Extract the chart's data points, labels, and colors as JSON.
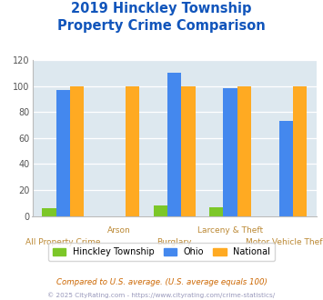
{
  "title_line1": "2019 Hinckley Township",
  "title_line2": "Property Crime Comparison",
  "categories": [
    "All Property Crime",
    "Arson",
    "Burglary",
    "Larceny & Theft",
    "Motor Vehicle Theft"
  ],
  "cat_labels": [
    "All Property Crime",
    "Arson",
    "Burglary",
    "Larceny & Theft",
    "Motor Vehicle Theft"
  ],
  "cat_labels_top": [
    "",
    "Arson",
    "",
    "Larceny & Theft",
    ""
  ],
  "cat_labels_bot": [
    "All Property Crime",
    "",
    "Burglary",
    "",
    "Motor Vehicle Theft"
  ],
  "series": {
    "Hinckley Township": [
      6,
      0,
      8,
      7,
      0
    ],
    "Ohio": [
      97,
      0,
      110,
      98,
      73
    ],
    "National": [
      100,
      100,
      100,
      100,
      100
    ]
  },
  "colors": {
    "Hinckley Township": "#7cc728",
    "Ohio": "#4488ee",
    "National": "#ffaa22"
  },
  "ylim": [
    0,
    120
  ],
  "yticks": [
    0,
    20,
    40,
    60,
    80,
    100,
    120
  ],
  "plot_bg": "#dde8ef",
  "title_color": "#1155bb",
  "xlabel_color": "#bb8833",
  "ylabel_color": "#777777",
  "footnote1": "Compared to U.S. average. (U.S. average equals 100)",
  "footnote2": "© 2025 CityRating.com - https://www.cityrating.com/crime-statistics/",
  "footnote1_color": "#cc6600",
  "footnote2_color": "#9999bb"
}
